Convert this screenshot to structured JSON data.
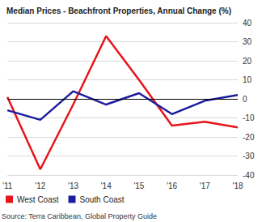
{
  "chart_data": {
    "type": "line",
    "title": "Median Prices - Beachfront Properties, Annual Change (%)",
    "categories": [
      "'11",
      "'12",
      "'13",
      "'14",
      "'15",
      "'16",
      "'17",
      "'18"
    ],
    "series": [
      {
        "name": "West Coast",
        "color": "#e8141b",
        "values": [
          1,
          -37,
          -3,
          33,
          10,
          -14,
          -12,
          -15
        ]
      },
      {
        "name": "South Coast",
        "color": "#1c1c9e",
        "values": [
          -6,
          -11,
          4,
          -3,
          3,
          -8,
          -1,
          2
        ]
      }
    ],
    "ylim": [
      -40,
      40
    ],
    "yticks": [
      -40,
      -30,
      -20,
      -10,
      0,
      10,
      20,
      30,
      40
    ],
    "grid": true,
    "legend": "bottom",
    "annotations": [
      "Source: Terra Caribbean, Global Property Guide"
    ]
  }
}
